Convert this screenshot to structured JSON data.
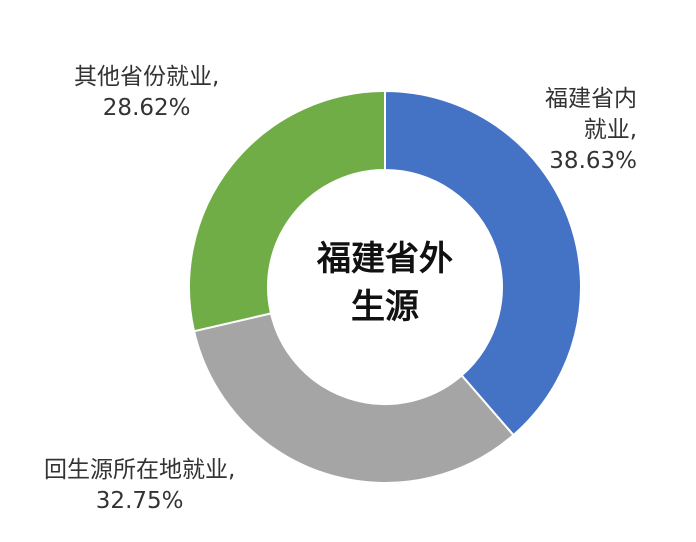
{
  "chart_data": {
    "type": "pie",
    "variant": "donut",
    "center_label": [
      "福建省外",
      "生源"
    ],
    "slices": [
      {
        "lines": [
          "福建省内",
          "就业,",
          "38.63%"
        ],
        "value": 38.63,
        "color": "#4472C4"
      },
      {
        "lines": [
          "回生源所在地就业,",
          "32.75%"
        ],
        "value": 32.75,
        "color": "#A5A5A5"
      },
      {
        "lines": [
          "其他省份就业,",
          "28.62%"
        ],
        "value": 28.62,
        "color": "#70AD47"
      }
    ]
  }
}
